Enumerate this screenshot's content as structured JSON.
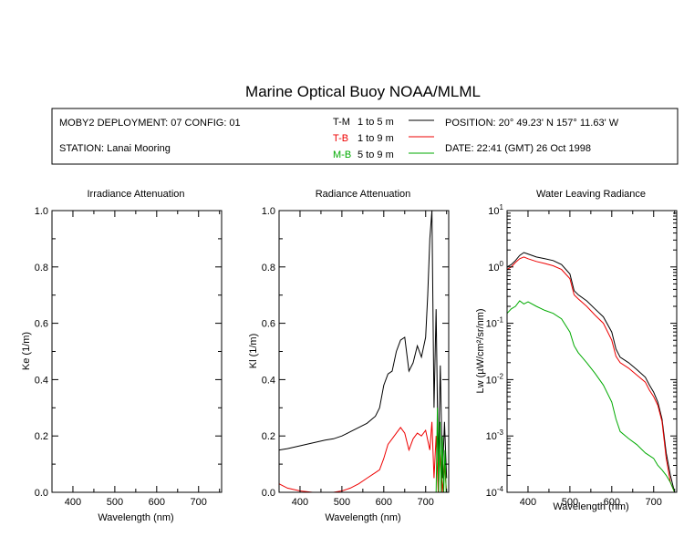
{
  "header": {
    "title": "Marine Optical Buoy NOAA/MLML",
    "deployment": "MOBY2 DEPLOYMENT: 07 CONFIG: 01",
    "station": "STATION: Lanai Mooring",
    "position": "POSITION: 20° 49.23' N   157° 11.63' W",
    "date": "DATE: 22:41 (GMT) 26 Oct 1998"
  },
  "legend": [
    {
      "name": "T-M",
      "range": "1 to 5  m",
      "color": "#000000"
    },
    {
      "name": "T-B",
      "range": "1 to 9  m",
      "color": "#ee0000"
    },
    {
      "name": "M-B",
      "range": "5 to 9  m",
      "color": "#00aa00"
    }
  ],
  "chart_data": [
    {
      "type": "line",
      "title": "Irradiance Attenuation",
      "xlabel": "Wavelength (nm)",
      "ylabel": "Ke  (1/m)",
      "xlim": [
        350,
        755
      ],
      "ylim": [
        0,
        1.0
      ],
      "xticks": [
        "400",
        "500",
        "600",
        "700"
      ],
      "xtick_values": [
        400,
        500,
        600,
        700
      ],
      "yticks": [
        "0.0",
        "0.2",
        "0.4",
        "0.6",
        "0.8",
        "1.0"
      ],
      "ytick_values": [
        0,
        0.2,
        0.4,
        0.6,
        0.8,
        1.0
      ],
      "series": []
    },
    {
      "type": "line",
      "title": "Radiance Attenuation",
      "xlabel": "Wavelength (nm)",
      "ylabel": "Kl  (1/m)",
      "xlim": [
        350,
        755
      ],
      "ylim": [
        0,
        1.0
      ],
      "xticks": [
        "400",
        "500",
        "600",
        "700"
      ],
      "xtick_values": [
        400,
        500,
        600,
        700
      ],
      "yticks": [
        "0.0",
        "0.2",
        "0.4",
        "0.6",
        "0.8",
        "1.0"
      ],
      "ytick_values": [
        0,
        0.2,
        0.4,
        0.6,
        0.8,
        1.0
      ],
      "series": [
        {
          "name": "T-M",
          "color": "#000000",
          "x": [
            350,
            370,
            400,
            430,
            460,
            480,
            500,
            520,
            540,
            560,
            580,
            590,
            600,
            610,
            620,
            630,
            640,
            650,
            660,
            670,
            680,
            690,
            700,
            705,
            710,
            715,
            720,
            725,
            730,
            735,
            740,
            745,
            750
          ],
          "y": [
            0.15,
            0.155,
            0.165,
            0.175,
            0.185,
            0.19,
            0.2,
            0.215,
            0.23,
            0.245,
            0.27,
            0.3,
            0.38,
            0.42,
            0.43,
            0.5,
            0.54,
            0.55,
            0.43,
            0.46,
            0.52,
            0.48,
            0.55,
            0.7,
            0.9,
            1.0,
            0.3,
            0.65,
            0.1,
            0.45,
            0.05,
            0.25,
            0.05
          ]
        },
        {
          "name": "T-B",
          "color": "#ee0000",
          "x": [
            350,
            370,
            400,
            430,
            460,
            480,
            500,
            520,
            540,
            560,
            580,
            590,
            600,
            610,
            620,
            630,
            640,
            650,
            660,
            670,
            680,
            690,
            700,
            710,
            715,
            720,
            725,
            730,
            735,
            740,
            745,
            750
          ],
          "y": [
            0.03,
            0.015,
            0.005,
            0.0,
            -0.005,
            0.0,
            0.005,
            0.015,
            0.03,
            0.05,
            0.07,
            0.08,
            0.12,
            0.17,
            0.19,
            0.21,
            0.23,
            0.21,
            0.15,
            0.19,
            0.21,
            0.2,
            0.22,
            0.15,
            0.25,
            0.05,
            0.2,
            0.0,
            0.15,
            0.0,
            0.1,
            0.0
          ]
        },
        {
          "name": "M-B",
          "color": "#00aa00",
          "x": [
            725,
            728,
            731,
            734,
            737,
            740,
            743,
            746,
            749
          ],
          "y": [
            0.0,
            0.3,
            0.0,
            0.25,
            0.0,
            0.2,
            0.0,
            0.15,
            0.0
          ]
        }
      ]
    },
    {
      "type": "line",
      "title": "Water Leaving Radiance",
      "xlabel": "Wavelength (nm)",
      "ylabel": "Lw  (µW/cm²/sr/nm)",
      "yscale": "log",
      "xlim": [
        350,
        755
      ],
      "ylim": [
        0.0001,
        10
      ],
      "xticks": [
        "400",
        "500",
        "600",
        "700"
      ],
      "xtick_values": [
        400,
        500,
        600,
        700
      ],
      "yticks": [
        "10^-4",
        "10^-3",
        "10^-2",
        "10^-1",
        "10^0",
        "10^1"
      ],
      "ytick_values": [
        0.0001,
        0.001,
        0.01,
        0.1,
        1,
        10
      ],
      "series": [
        {
          "name": "T-M",
          "color": "#000000",
          "x": [
            350,
            360,
            370,
            380,
            390,
            400,
            420,
            440,
            460,
            480,
            500,
            510,
            520,
            540,
            560,
            580,
            600,
            610,
            620,
            640,
            660,
            680,
            690,
            700,
            710,
            720,
            730,
            740,
            750
          ],
          "y": [
            1.0,
            1.1,
            1.3,
            1.6,
            1.8,
            1.7,
            1.5,
            1.4,
            1.3,
            1.1,
            0.75,
            0.38,
            0.32,
            0.25,
            0.18,
            0.13,
            0.07,
            0.035,
            0.025,
            0.02,
            0.015,
            0.011,
            0.008,
            0.006,
            0.004,
            0.002,
            0.0005,
            0.0002,
            0.0001
          ]
        },
        {
          "name": "T-B",
          "color": "#ee0000",
          "x": [
            350,
            360,
            370,
            380,
            390,
            400,
            420,
            440,
            460,
            480,
            500,
            510,
            520,
            540,
            560,
            580,
            600,
            610,
            620,
            640,
            660,
            680,
            690,
            700,
            710,
            720,
            730,
            740,
            750
          ],
          "y": [
            0.9,
            1.0,
            1.2,
            1.4,
            1.5,
            1.4,
            1.25,
            1.15,
            1.05,
            0.9,
            0.62,
            0.32,
            0.27,
            0.2,
            0.14,
            0.1,
            0.05,
            0.026,
            0.02,
            0.016,
            0.012,
            0.009,
            0.0065,
            0.005,
            0.0035,
            0.0018,
            0.0004,
            0.00015,
            0.0001
          ]
        },
        {
          "name": "M-B",
          "color": "#00aa00",
          "x": [
            350,
            360,
            370,
            380,
            390,
            400,
            420,
            440,
            460,
            480,
            500,
            510,
            520,
            540,
            560,
            580,
            600,
            610,
            620,
            640,
            660,
            680,
            700,
            710,
            720,
            730,
            740,
            750
          ],
          "y": [
            0.15,
            0.18,
            0.2,
            0.25,
            0.22,
            0.24,
            0.2,
            0.17,
            0.15,
            0.12,
            0.07,
            0.04,
            0.03,
            0.02,
            0.013,
            0.008,
            0.004,
            0.002,
            0.0012,
            0.0009,
            0.0007,
            0.0005,
            0.0004,
            0.0003,
            0.00025,
            0.0002,
            0.00015,
            0.0001
          ]
        }
      ]
    }
  ]
}
